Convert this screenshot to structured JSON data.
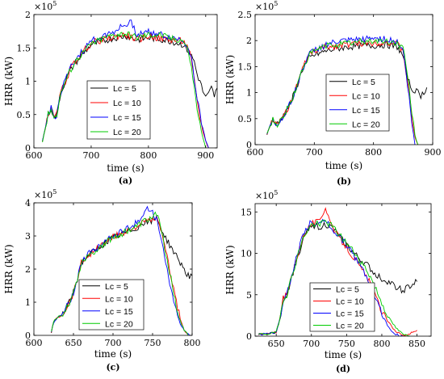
{
  "chart_data": [
    {
      "type": "line",
      "panel_label": "(a)",
      "xlabel": "time (s)",
      "ylabel": "HRR (kW)",
      "exponent_label": "×10",
      "exponent_power": "5",
      "xlim": [
        600,
        920
      ],
      "ylim": [
        0,
        2
      ],
      "xticks": [
        600,
        700,
        800,
        900
      ],
      "yticks": [
        0,
        0.5,
        1,
        1.5,
        2
      ],
      "xtick_labels": [
        "600",
        "700",
        "800",
        "900"
      ],
      "ytick_labels": [
        "0",
        "0.5",
        "1",
        "1.5",
        "2"
      ],
      "legend": "center-left",
      "grid": false,
      "series": [
        {
          "name": "Lc = 5",
          "color": "#000000",
          "x": [
            615,
            620,
            625,
            630,
            635,
            640,
            645,
            650,
            660,
            670,
            680,
            690,
            700,
            720,
            740,
            760,
            780,
            800,
            820,
            840,
            860,
            870,
            880,
            885,
            890,
            895,
            900,
            905,
            910,
            915,
            920
          ],
          "y": [
            0.1,
            0.3,
            0.5,
            0.6,
            0.45,
            0.5,
            0.75,
            0.9,
            1.1,
            1.25,
            1.35,
            1.45,
            1.55,
            1.6,
            1.65,
            1.68,
            1.62,
            1.65,
            1.63,
            1.6,
            1.55,
            1.45,
            1.3,
            1.1,
            1.0,
            0.85,
            0.75,
            0.8,
            0.9,
            0.78,
            0.9
          ]
        },
        {
          "name": "Lc = 10",
          "color": "#ff0000",
          "x": [
            615,
            620,
            625,
            630,
            635,
            640,
            645,
            650,
            660,
            670,
            680,
            690,
            700,
            720,
            740,
            760,
            780,
            800,
            820,
            840,
            860,
            870,
            875,
            880,
            885,
            890,
            895,
            900,
            905
          ],
          "y": [
            0.1,
            0.3,
            0.5,
            0.6,
            0.45,
            0.5,
            0.75,
            0.9,
            1.1,
            1.28,
            1.38,
            1.48,
            1.58,
            1.62,
            1.66,
            1.7,
            1.62,
            1.68,
            1.64,
            1.62,
            1.6,
            1.5,
            1.3,
            1.0,
            0.7,
            0.45,
            0.25,
            0.1,
            0.0
          ]
        },
        {
          "name": "Lc = 15",
          "color": "#0000ff",
          "x": [
            615,
            620,
            625,
            630,
            635,
            640,
            645,
            650,
            660,
            670,
            680,
            690,
            700,
            720,
            740,
            760,
            770,
            780,
            800,
            820,
            840,
            860,
            870,
            875,
            880,
            885,
            890,
            895,
            900,
            905
          ],
          "y": [
            0.1,
            0.3,
            0.5,
            0.6,
            0.45,
            0.5,
            0.75,
            0.9,
            1.12,
            1.3,
            1.4,
            1.5,
            1.6,
            1.68,
            1.75,
            1.85,
            1.88,
            1.7,
            1.75,
            1.7,
            1.65,
            1.62,
            1.5,
            1.35,
            1.05,
            0.75,
            0.5,
            0.3,
            0.1,
            0.0
          ]
        },
        {
          "name": "Lc = 20",
          "color": "#00cc00",
          "x": [
            615,
            620,
            625,
            630,
            635,
            640,
            645,
            650,
            660,
            670,
            680,
            690,
            700,
            720,
            740,
            760,
            780,
            800,
            820,
            840,
            860,
            870,
            875,
            880,
            885,
            890,
            895,
            900
          ],
          "y": [
            0.1,
            0.3,
            0.5,
            0.6,
            0.45,
            0.5,
            0.75,
            0.9,
            1.1,
            1.27,
            1.38,
            1.47,
            1.56,
            1.64,
            1.7,
            1.72,
            1.66,
            1.7,
            1.7,
            1.64,
            1.62,
            1.45,
            1.2,
            0.9,
            0.6,
            0.35,
            0.15,
            0.0
          ]
        }
      ]
    },
    {
      "type": "line",
      "panel_label": "(b)",
      "xlabel": "time (s)",
      "ylabel": "HRR (kW)",
      "exponent_label": "×10",
      "exponent_power": "5",
      "xlim": [
        600,
        900
      ],
      "ylim": [
        0,
        2.5
      ],
      "xticks": [
        600,
        700,
        800,
        900
      ],
      "yticks": [
        0,
        0.5,
        1,
        1.5,
        2,
        2.5
      ],
      "xtick_labels": [
        "600",
        "700",
        "800",
        "900"
      ],
      "ytick_labels": [
        "0",
        "0.5",
        "1",
        "1.5",
        "2",
        "2.5"
      ],
      "legend": "center-right",
      "grid": false,
      "series": [
        {
          "name": "Lc = 5",
          "color": "#000000",
          "x": [
            620,
            625,
            630,
            635,
            640,
            650,
            660,
            670,
            680,
            690,
            700,
            720,
            740,
            760,
            780,
            800,
            820,
            840,
            850,
            855,
            860,
            865,
            870,
            875,
            880,
            885,
            890
          ],
          "y": [
            0.2,
            0.35,
            0.5,
            0.4,
            0.4,
            0.6,
            0.8,
            1.1,
            1.45,
            1.65,
            1.72,
            1.8,
            1.85,
            1.88,
            1.9,
            1.9,
            1.92,
            1.88,
            1.7,
            1.4,
            1.2,
            1.05,
            1.05,
            1.0,
            0.95,
            1.0,
            1.1
          ]
        },
        {
          "name": "Lc = 10",
          "color": "#ff0000",
          "x": [
            620,
            625,
            630,
            635,
            640,
            650,
            660,
            670,
            680,
            690,
            700,
            720,
            740,
            760,
            780,
            800,
            820,
            840,
            850,
            855,
            860,
            865,
            870,
            875
          ],
          "y": [
            0.2,
            0.35,
            0.5,
            0.4,
            0.4,
            0.6,
            0.8,
            1.1,
            1.45,
            1.7,
            1.8,
            1.88,
            1.9,
            1.93,
            1.95,
            1.96,
            1.97,
            1.93,
            1.8,
            1.4,
            1.0,
            0.5,
            0.15,
            0.0
          ]
        },
        {
          "name": "Lc = 15",
          "color": "#0000ff",
          "x": [
            620,
            625,
            630,
            635,
            640,
            650,
            660,
            670,
            680,
            690,
            700,
            720,
            740,
            760,
            780,
            800,
            820,
            840,
            850,
            855,
            860,
            865,
            870
          ],
          "y": [
            0.2,
            0.35,
            0.5,
            0.4,
            0.4,
            0.6,
            0.8,
            1.1,
            1.45,
            1.72,
            1.82,
            1.92,
            1.98,
            2.0,
            2.02,
            2.05,
            2.03,
            1.98,
            1.8,
            1.4,
            0.9,
            0.4,
            0.0
          ]
        },
        {
          "name": "Lc = 20",
          "color": "#00cc00",
          "x": [
            620,
            625,
            630,
            635,
            640,
            650,
            660,
            670,
            680,
            690,
            700,
            720,
            740,
            760,
            780,
            800,
            820,
            840,
            850,
            855,
            860,
            865,
            870,
            875
          ],
          "y": [
            0.2,
            0.35,
            0.5,
            0.4,
            0.4,
            0.6,
            0.8,
            1.1,
            1.45,
            1.7,
            1.8,
            1.9,
            1.93,
            1.95,
            1.98,
            2.0,
            1.98,
            1.95,
            1.85,
            1.5,
            1.1,
            0.6,
            0.2,
            0.0
          ]
        }
      ]
    },
    {
      "type": "line",
      "panel_label": "(c)",
      "xlabel": "time (s)",
      "ylabel": "HRR (kW)",
      "exponent_label": "×10",
      "exponent_power": "5",
      "xlim": [
        600,
        800
      ],
      "ylim": [
        0,
        4
      ],
      "xticks": [
        600,
        650,
        700,
        750,
        800
      ],
      "yticks": [
        0,
        1,
        2,
        3,
        4
      ],
      "xtick_labels": [
        "600",
        "650",
        "700",
        "750",
        "800"
      ],
      "ytick_labels": [
        "0",
        "1",
        "2",
        "3",
        "4"
      ],
      "legend": "bottom-center",
      "grid": false,
      "series": [
        {
          "name": "Lc = 5",
          "color": "#000000",
          "x": [
            622,
            625,
            630,
            635,
            640,
            645,
            650,
            655,
            660,
            670,
            680,
            690,
            700,
            710,
            720,
            730,
            740,
            750,
            755,
            760,
            765,
            770,
            775,
            780,
            785,
            790,
            795,
            800
          ],
          "y": [
            0.1,
            0.4,
            0.55,
            0.6,
            0.8,
            1.0,
            1.3,
            1.7,
            2.2,
            2.45,
            2.6,
            2.8,
            2.95,
            3.05,
            3.15,
            3.25,
            3.4,
            3.45,
            3.55,
            3.3,
            3.0,
            2.8,
            2.6,
            2.4,
            2.2,
            2.0,
            1.8,
            1.8
          ]
        },
        {
          "name": "Lc = 10",
          "color": "#ff0000",
          "x": [
            622,
            625,
            630,
            635,
            640,
            645,
            650,
            655,
            660,
            670,
            680,
            690,
            700,
            710,
            720,
            730,
            740,
            750,
            755,
            760,
            765,
            770,
            775,
            780,
            785,
            790,
            795
          ],
          "y": [
            0.1,
            0.4,
            0.55,
            0.6,
            0.8,
            1.0,
            1.3,
            1.7,
            2.2,
            2.45,
            2.62,
            2.82,
            2.97,
            3.08,
            3.18,
            3.3,
            3.42,
            3.5,
            3.55,
            3.2,
            2.7,
            2.2,
            1.6,
            1.0,
            0.5,
            0.15,
            0.0
          ]
        },
        {
          "name": "Lc = 15",
          "color": "#0000ff",
          "x": [
            622,
            625,
            630,
            635,
            640,
            645,
            650,
            655,
            660,
            670,
            680,
            690,
            700,
            710,
            720,
            730,
            740,
            745,
            750,
            755,
            760,
            765,
            770,
            775,
            780,
            785,
            790,
            795,
            798
          ],
          "y": [
            0.1,
            0.4,
            0.55,
            0.6,
            0.8,
            1.0,
            1.3,
            1.7,
            2.2,
            2.48,
            2.65,
            2.85,
            3.0,
            3.12,
            3.25,
            3.4,
            3.7,
            3.85,
            3.75,
            3.5,
            3.0,
            2.4,
            1.8,
            1.2,
            0.7,
            0.35,
            0.15,
            0.05,
            0.0
          ]
        },
        {
          "name": "Lc = 20",
          "color": "#00cc00",
          "x": [
            622,
            625,
            630,
            635,
            640,
            645,
            650,
            655,
            660,
            670,
            680,
            690,
            700,
            710,
            720,
            730,
            740,
            750,
            755,
            760,
            765,
            770,
            775,
            780,
            785,
            790,
            795
          ],
          "y": [
            0.1,
            0.4,
            0.55,
            0.6,
            0.8,
            1.0,
            1.3,
            1.7,
            2.2,
            2.45,
            2.6,
            2.8,
            2.95,
            3.05,
            3.18,
            3.28,
            3.45,
            3.55,
            3.7,
            3.3,
            2.7,
            2.1,
            1.5,
            0.9,
            0.45,
            0.15,
            0.0
          ]
        }
      ]
    },
    {
      "type": "line",
      "panel_label": "(d)",
      "xlabel": "time (s)",
      "ylabel": "HRR (kW)",
      "exponent_label": "×10",
      "exponent_power": "5",
      "xlim": [
        620,
        870
      ],
      "ylim": [
        0,
        16
      ],
      "xticks": [
        650,
        700,
        750,
        800,
        850
      ],
      "yticks": [
        0,
        5,
        10,
        15
      ],
      "xtick_labels": [
        "650",
        "700",
        "750",
        "800",
        "850"
      ],
      "ytick_labels": [
        "0",
        "5",
        "10",
        "15"
      ],
      "legend": "bottom-center",
      "grid": false,
      "series": [
        {
          "name": "Lc = 5",
          "color": "#000000",
          "x": [
            625,
            640,
            650,
            655,
            660,
            665,
            670,
            680,
            690,
            700,
            710,
            720,
            730,
            740,
            750,
            760,
            770,
            780,
            790,
            800,
            810,
            820,
            830,
            840,
            850
          ],
          "y": [
            0.2,
            0.3,
            0.5,
            2.0,
            4.5,
            5.0,
            6.5,
            9.5,
            12.0,
            13.5,
            13.2,
            13.5,
            13.0,
            12.0,
            11.0,
            10.0,
            9.2,
            8.5,
            7.5,
            7.0,
            6.5,
            6.0,
            5.5,
            6.0,
            6.6
          ]
        },
        {
          "name": "Lc = 10",
          "color": "#ff0000",
          "x": [
            625,
            640,
            650,
            655,
            660,
            665,
            670,
            680,
            690,
            700,
            710,
            720,
            730,
            740,
            750,
            760,
            770,
            780,
            790,
            800,
            810,
            820,
            830,
            840,
            850
          ],
          "y": [
            0.2,
            0.3,
            0.5,
            2.0,
            4.5,
            5.0,
            6.5,
            9.8,
            12.4,
            13.6,
            13.8,
            15.6,
            13.0,
            11.8,
            10.8,
            9.5,
            8.2,
            7.0,
            5.0,
            3.0,
            1.6,
            0.6,
            0.1,
            0.3,
            0.7
          ]
        },
        {
          "name": "Lc = 15",
          "color": "#0000ff",
          "x": [
            625,
            640,
            650,
            655,
            660,
            665,
            670,
            680,
            690,
            700,
            710,
            720,
            730,
            740,
            750,
            760,
            770,
            780,
            790,
            800,
            810,
            820,
            830
          ],
          "y": [
            0.2,
            0.3,
            0.5,
            2.0,
            4.5,
            5.0,
            6.5,
            10.0,
            12.6,
            13.8,
            13.5,
            14.0,
            13.0,
            12.0,
            11.0,
            9.8,
            8.5,
            7.0,
            5.0,
            2.8,
            1.0,
            0.2,
            0.0
          ]
        },
        {
          "name": "Lc = 20",
          "color": "#00cc00",
          "x": [
            625,
            640,
            650,
            655,
            660,
            665,
            670,
            680,
            690,
            700,
            710,
            720,
            730,
            740,
            750,
            760,
            770,
            780,
            790,
            800,
            810,
            820,
            830,
            840
          ],
          "y": [
            0.2,
            0.3,
            0.5,
            2.0,
            4.5,
            5.0,
            6.5,
            9.6,
            12.2,
            13.4,
            13.6,
            13.9,
            13.2,
            12.2,
            11.2,
            10.2,
            9.0,
            7.8,
            6.0,
            4.0,
            2.2,
            1.0,
            0.2,
            0.0
          ]
        }
      ]
    }
  ]
}
